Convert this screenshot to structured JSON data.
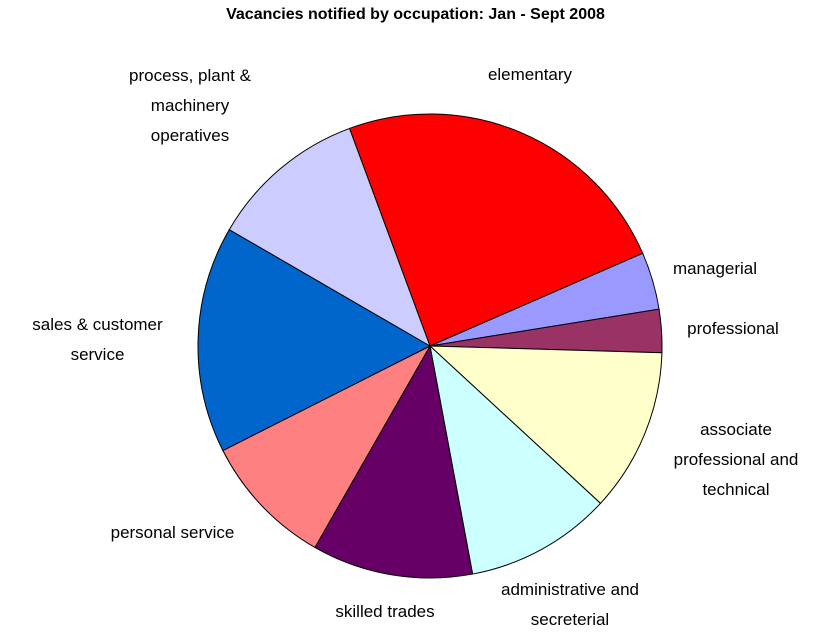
{
  "chart_data": {
    "type": "pie",
    "title": "Vacancies notified by occupation: Jan - Sept 2008",
    "categories": [
      "elementary",
      "managerial",
      "professional",
      "associate professional and technical",
      "administrative and secreterial",
      "skilled trades",
      "personal service",
      "sales & customer service",
      "process, plant & machinery operatives"
    ],
    "values": [
      24.1,
      4.0,
      3.0,
      11.4,
      10.2,
      11.2,
      9.3,
      15.8,
      11.0
    ],
    "colors": [
      "#ff0000",
      "#9999ff",
      "#993366",
      "#ffffcc",
      "#ccffff",
      "#660066",
      "#ff8080",
      "#0066cc",
      "#ccccff"
    ]
  }
}
